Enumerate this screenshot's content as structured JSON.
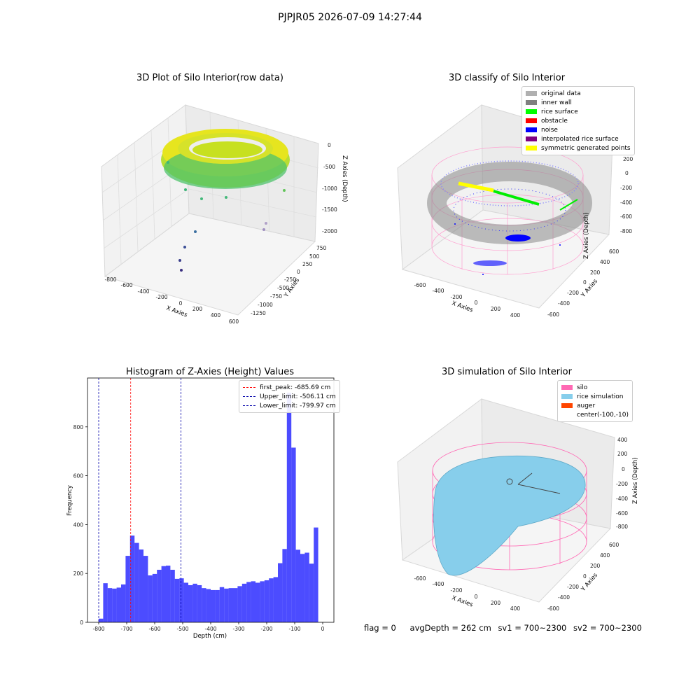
{
  "figure_title": "PJPJR05 2026-07-09 14:27:44",
  "footer": {
    "flag": "flag = 0",
    "avg_depth": "avgDepth = 262 cm",
    "sv1": "sv1 = 700~2300",
    "sv2": "sv2 = 700~2300"
  },
  "panels": {
    "raw": {
      "title": "3D Plot of Silo Interior(row data)",
      "xlabel": "X Axies",
      "ylabel": "Y Axies",
      "zlabel": "Z Axies (Depth)",
      "x_ticks": [
        "-800",
        "-600",
        "-400",
        "-200",
        "0",
        "200",
        "400",
        "600"
      ],
      "y_ticks": [
        "750",
        "500",
        "250",
        "0",
        "-250",
        "-500",
        "-750",
        "-1000",
        "-1250"
      ],
      "z_ticks": [
        "0",
        "-500",
        "-1000",
        "-1500",
        "-2000"
      ]
    },
    "classify": {
      "title": "3D classify of Silo Interior",
      "xlabel": "X Axies",
      "ylabel": "Y Axies",
      "zlabel": "Z Axies (Depth)",
      "x_ticks": [
        "-600",
        "-400",
        "-200",
        "0",
        "200",
        "400"
      ],
      "y_ticks": [
        "600",
        "400",
        "200",
        "0",
        "-200",
        "-400",
        "-600"
      ],
      "z_ticks": [
        "200",
        "0",
        "-200",
        "-400",
        "-600",
        "-800"
      ],
      "legend": [
        {
          "label": "original data",
          "color": "#b0b0b0"
        },
        {
          "label": "inner wall",
          "color": "#808080"
        },
        {
          "label": "rice surface",
          "color": "#00ff00"
        },
        {
          "label": "obstacle",
          "color": "#ff0000"
        },
        {
          "label": "noise",
          "color": "#0000ff"
        },
        {
          "label": "interpolated rice surface",
          "color": "#800080"
        },
        {
          "label": "symmetric generated points",
          "color": "#ffff00"
        }
      ]
    },
    "simulation": {
      "title": "3D simulation of Silo Interior",
      "xlabel": "X Axies",
      "ylabel": "Y Axies",
      "zlabel": "Z Axies (Depth)",
      "x_ticks": [
        "-600",
        "-400",
        "-200",
        "0",
        "200",
        "400"
      ],
      "y_ticks": [
        "600",
        "400",
        "200",
        "0",
        "-200",
        "-400",
        "-600"
      ],
      "z_ticks": [
        "400",
        "200",
        "0",
        "-200",
        "-400",
        "-600",
        "-800"
      ],
      "legend": [
        {
          "label": "silo",
          "color": "#ff69b4"
        },
        {
          "label": "rice simulation",
          "color": "#87ceeb"
        },
        {
          "label": "auger",
          "color": "#ff4500"
        },
        {
          "label": "center(-100,-10)",
          "color": ""
        }
      ]
    }
  },
  "chart_data": {
    "type": "bar",
    "title": "Histogram of Z-Axies (Height) Values",
    "xlabel": "Depth (cm)",
    "ylabel": "Frequency",
    "xlim": [
      -840,
      40
    ],
    "ylim": [
      0,
      1000
    ],
    "x_ticks": [
      -800,
      -700,
      -600,
      -500,
      -400,
      -300,
      -200,
      -100,
      0
    ],
    "y_ticks": [
      0,
      200,
      400,
      600,
      800
    ],
    "bin_start": -800,
    "bin_width": 16,
    "bar_color": "#0000ff",
    "values": [
      15,
      160,
      140,
      138,
      142,
      155,
      272,
      355,
      325,
      298,
      272,
      192,
      198,
      215,
      230,
      232,
      215,
      178,
      180,
      162,
      152,
      158,
      152,
      140,
      136,
      132,
      132,
      144,
      138,
      140,
      140,
      148,
      158,
      165,
      168,
      162,
      168,
      172,
      180,
      185,
      242,
      300,
      940,
      715,
      297,
      280,
      285,
      240,
      388
    ],
    "vlines": [
      {
        "label": "first_peak: -685.69 cm",
        "x": -685.69,
        "color": "#ff0000"
      },
      {
        "label": "Upper_limit: -506.11 cm",
        "x": -506.11,
        "color": "#0000aa"
      },
      {
        "label": "Lower_limit: -799.97 cm",
        "x": -799.97,
        "color": "#0000aa"
      }
    ],
    "legend_position": "top-right"
  }
}
